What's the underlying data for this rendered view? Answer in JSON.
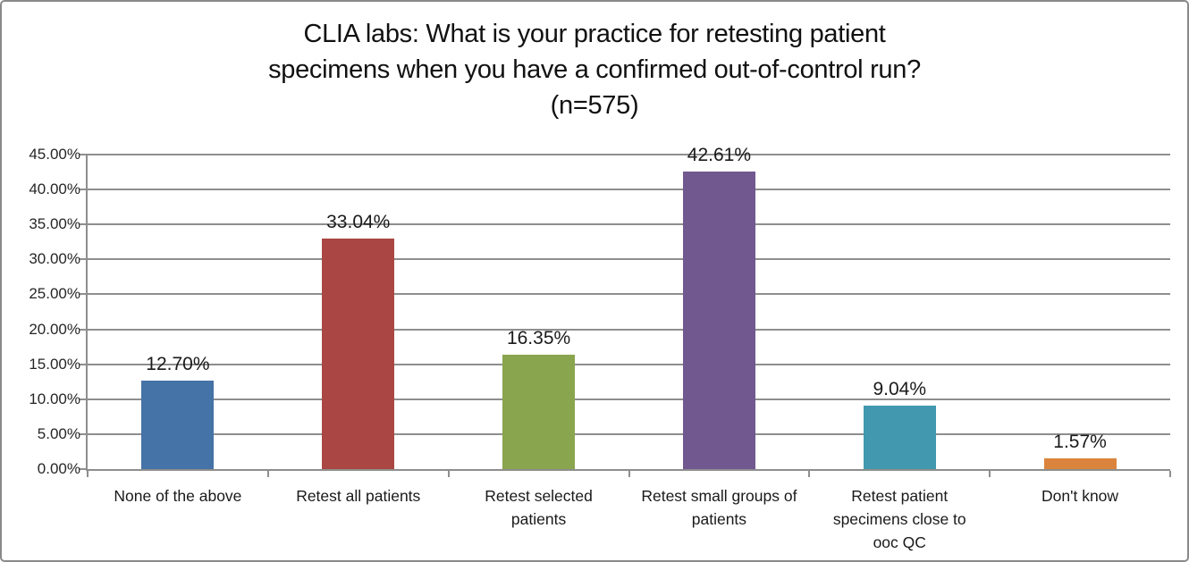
{
  "frame": {
    "background": "#ffffff",
    "border_color": "#8a8a8a"
  },
  "chart_data": {
    "type": "bar",
    "title": "CLIA labs: What is your practice for retesting patient specimens when you have a confirmed out-of-control run? (n=575)",
    "title_lines": [
      "CLIA labs: What is your practice for retesting patient",
      "specimens when you have a confirmed out-of-control run?",
      "(n=575)"
    ],
    "sample_size_label": "n=575",
    "categories": [
      "None of the above",
      "Retest all patients",
      "Retest selected patients",
      "Retest small groups of patients",
      "Retest patient specimens close to ooc QC",
      "Don't know"
    ],
    "values": [
      12.7,
      33.04,
      16.35,
      42.61,
      9.04,
      1.57
    ],
    "value_labels": [
      "12.70%",
      "33.04%",
      "16.35%",
      "42.61%",
      "9.04%",
      "1.57%"
    ],
    "bar_colors": [
      "#4572A7",
      "#AA4643",
      "#89A54E",
      "#71588F",
      "#4198AF",
      "#DB843D"
    ],
    "xlabel": "",
    "ylabel": "",
    "ylim": [
      0,
      45
    ],
    "ytick_step": 5,
    "ytick_labels": [
      "0.00%",
      "5.00%",
      "10.00%",
      "15.00%",
      "20.00%",
      "25.00%",
      "30.00%",
      "35.00%",
      "40.00%",
      "45.00%"
    ],
    "grid": "horizontal",
    "legend": "none",
    "axis_color": "#8e8e8e"
  }
}
